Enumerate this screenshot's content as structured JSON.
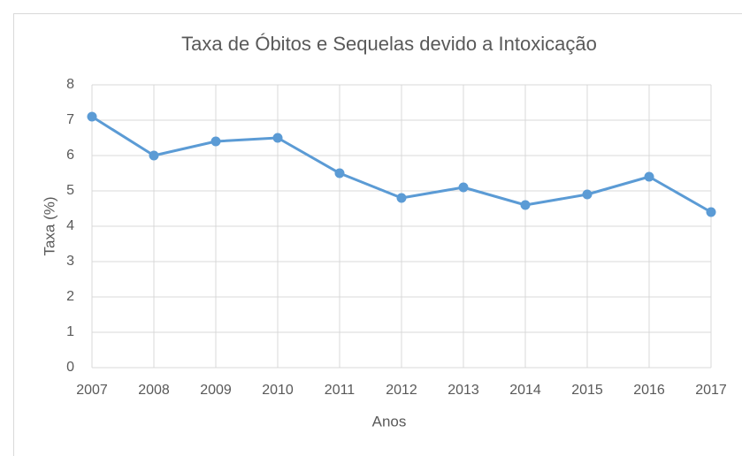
{
  "chart_data": {
    "type": "line",
    "title": "Taxa de Óbitos e Sequelas devido a Intoxicação",
    "xlabel": "Anos",
    "ylabel": "Taxa (%)",
    "x": [
      2007,
      2008,
      2009,
      2010,
      2011,
      2012,
      2013,
      2014,
      2015,
      2016,
      2017
    ],
    "values": [
      7.1,
      6.0,
      6.4,
      6.5,
      5.5,
      4.8,
      5.1,
      4.6,
      4.9,
      5.4,
      4.4
    ],
    "color": "#5b9bd5",
    "xlim": [
      2007,
      2017
    ],
    "xticks": [
      2007,
      2008,
      2009,
      2010,
      2011,
      2012,
      2013,
      2014,
      2015,
      2016,
      2017
    ],
    "ylim": [
      0,
      8
    ],
    "yticks": [
      0,
      1,
      2,
      3,
      4,
      5,
      6,
      7,
      8
    ],
    "grid": true
  }
}
